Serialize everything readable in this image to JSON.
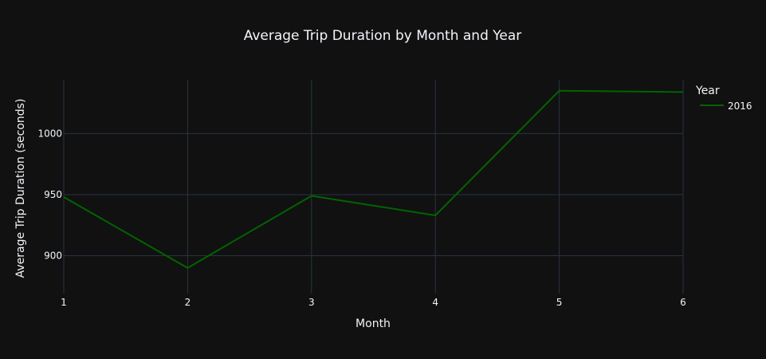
{
  "chart_data": {
    "type": "line",
    "title": "Average Trip Duration by Month and Year",
    "xlabel": "Month",
    "ylabel": "Average Trip Duration (seconds)",
    "x": [
      1,
      2,
      3,
      4,
      5,
      6
    ],
    "xlim": [
      1,
      6
    ],
    "ylim": [
      869,
      1044
    ],
    "xticks": [
      "1",
      "2",
      "3",
      "4",
      "5",
      "6"
    ],
    "yticks": [
      900,
      950,
      1000
    ],
    "ytick_labels": [
      "900",
      "950",
      "1000"
    ],
    "grid": true,
    "legend": {
      "title": "Year",
      "placement": "top-right"
    },
    "series": [
      {
        "name": "2016",
        "color": "#006400",
        "values": [
          948,
          890,
          949,
          933,
          1035,
          1034
        ]
      }
    ]
  },
  "colors": {
    "background": "#111111",
    "grid": "#283442",
    "text": "#f2f5fa"
  }
}
